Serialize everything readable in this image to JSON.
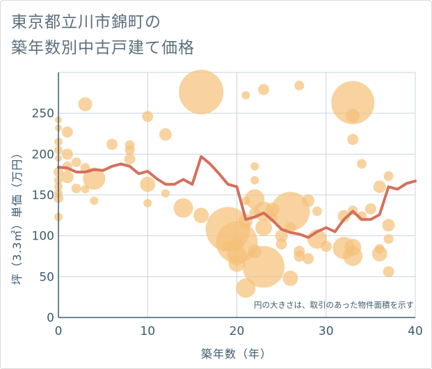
{
  "title_line1": "東京都立川市錦町の",
  "title_line2": "築年数別中古戸建て価格",
  "chart_data": {
    "type": "scatter",
    "title": "東京都立川市錦町の築年数別中古戸建て価格",
    "xlabel": "築年数（年）",
    "ylabel": "坪（3.3㎡）単価（万円）",
    "xlim": [
      0,
      40
    ],
    "ylim": [
      0,
      300
    ],
    "xticks": [
      "0",
      "10",
      "20",
      "30",
      "40"
    ],
    "yticks": [
      "0",
      "50",
      "100",
      "150",
      "200",
      "250"
    ],
    "grid": true,
    "note": "円の大きさは、取引のあった物件面積を示す",
    "colors": {
      "bubble": "#f5c178",
      "line": "#d4705c",
      "grid": "#c5d5de",
      "axis": "#3c5b6d"
    },
    "series": [
      {
        "kind": "bubbles",
        "points": [
          {
            "x": 0,
            "y": 242,
            "s": 5
          },
          {
            "x": 0,
            "y": 232,
            "s": 5
          },
          {
            "x": 0,
            "y": 215,
            "s": 6
          },
          {
            "x": 0,
            "y": 205,
            "s": 6
          },
          {
            "x": 0,
            "y": 195,
            "s": 5
          },
          {
            "x": 0,
            "y": 178,
            "s": 7
          },
          {
            "x": 0,
            "y": 168,
            "s": 6
          },
          {
            "x": 0,
            "y": 160,
            "s": 6
          },
          {
            "x": 0,
            "y": 152,
            "s": 6
          },
          {
            "x": 0,
            "y": 146,
            "s": 7
          },
          {
            "x": 0,
            "y": 123,
            "s": 6
          },
          {
            "x": 1,
            "y": 227,
            "s": 8
          },
          {
            "x": 1,
            "y": 200,
            "s": 8
          },
          {
            "x": 1,
            "y": 185,
            "s": 7
          },
          {
            "x": 1,
            "y": 172,
            "s": 9
          },
          {
            "x": 2,
            "y": 190,
            "s": 7
          },
          {
            "x": 2,
            "y": 158,
            "s": 7
          },
          {
            "x": 3,
            "y": 261,
            "s": 10
          },
          {
            "x": 3,
            "y": 183,
            "s": 7
          },
          {
            "x": 3,
            "y": 157,
            "s": 6
          },
          {
            "x": 4,
            "y": 170,
            "s": 16
          },
          {
            "x": 4,
            "y": 143,
            "s": 6
          },
          {
            "x": 6,
            "y": 212,
            "s": 8
          },
          {
            "x": 8,
            "y": 211,
            "s": 7
          },
          {
            "x": 8,
            "y": 205,
            "s": 7
          },
          {
            "x": 8,
            "y": 194,
            "s": 8
          },
          {
            "x": 10,
            "y": 246,
            "s": 8
          },
          {
            "x": 10,
            "y": 163,
            "s": 11
          },
          {
            "x": 10,
            "y": 140,
            "s": 6
          },
          {
            "x": 12,
            "y": 224,
            "s": 9
          },
          {
            "x": 12,
            "y": 152,
            "s": 6
          },
          {
            "x": 14,
            "y": 134,
            "s": 14
          },
          {
            "x": 16,
            "y": 276,
            "s": 32
          },
          {
            "x": 16,
            "y": 125,
            "s": 11
          },
          {
            "x": 19,
            "y": 108,
            "s": 32
          },
          {
            "x": 19,
            "y": 88,
            "s": 7
          },
          {
            "x": 20,
            "y": 92,
            "s": 30
          },
          {
            "x": 20,
            "y": 90,
            "s": 10
          },
          {
            "x": 20,
            "y": 76,
            "s": 14
          },
          {
            "x": 20,
            "y": 66,
            "s": 12
          },
          {
            "x": 21,
            "y": 272,
            "s": 6
          },
          {
            "x": 21,
            "y": 143,
            "s": 6
          },
          {
            "x": 21,
            "y": 118,
            "s": 10
          },
          {
            "x": 21,
            "y": 36,
            "s": 14
          },
          {
            "x": 22,
            "y": 185,
            "s": 6
          },
          {
            "x": 22,
            "y": 168,
            "s": 6
          },
          {
            "x": 22,
            "y": 145,
            "s": 14
          },
          {
            "x": 22,
            "y": 128,
            "s": 8
          },
          {
            "x": 22,
            "y": 81,
            "s": 10
          },
          {
            "x": 23,
            "y": 62,
            "s": 30
          },
          {
            "x": 23,
            "y": 279,
            "s": 8
          },
          {
            "x": 23,
            "y": 130,
            "s": 14
          },
          {
            "x": 23,
            "y": 110,
            "s": 12
          },
          {
            "x": 24,
            "y": 132,
            "s": 10
          },
          {
            "x": 24,
            "y": 122,
            "s": 7
          },
          {
            "x": 25,
            "y": 100,
            "s": 9
          },
          {
            "x": 25,
            "y": 90,
            "s": 8
          },
          {
            "x": 26,
            "y": 130,
            "s": 28
          },
          {
            "x": 26,
            "y": 110,
            "s": 8
          },
          {
            "x": 26,
            "y": 48,
            "s": 11
          },
          {
            "x": 27,
            "y": 284,
            "s": 7
          },
          {
            "x": 27,
            "y": 81,
            "s": 8
          },
          {
            "x": 27,
            "y": 75,
            "s": 8
          },
          {
            "x": 28,
            "y": 143,
            "s": 9
          },
          {
            "x": 28,
            "y": 72,
            "s": 8
          },
          {
            "x": 29,
            "y": 130,
            "s": 7
          },
          {
            "x": 29,
            "y": 96,
            "s": 14
          },
          {
            "x": 30,
            "y": 87,
            "s": 8
          },
          {
            "x": 32,
            "y": 124,
            "s": 9
          },
          {
            "x": 32,
            "y": 85,
            "s": 16
          },
          {
            "x": 33,
            "y": 263,
            "s": 31
          },
          {
            "x": 33,
            "y": 247,
            "s": 10
          },
          {
            "x": 33,
            "y": 218,
            "s": 8
          },
          {
            "x": 33,
            "y": 131,
            "s": 7
          },
          {
            "x": 33,
            "y": 86,
            "s": 12
          },
          {
            "x": 33,
            "y": 75,
            "s": 14
          },
          {
            "x": 34,
            "y": 188,
            "s": 7
          },
          {
            "x": 34,
            "y": 124,
            "s": 7
          },
          {
            "x": 35,
            "y": 133,
            "s": 8
          },
          {
            "x": 36,
            "y": 160,
            "s": 9
          },
          {
            "x": 36,
            "y": 84,
            "s": 7
          },
          {
            "x": 36,
            "y": 78,
            "s": 11
          },
          {
            "x": 37,
            "y": 173,
            "s": 7
          },
          {
            "x": 37,
            "y": 113,
            "s": 9
          },
          {
            "x": 37,
            "y": 96,
            "s": 7
          },
          {
            "x": 37,
            "y": 56,
            "s": 8
          }
        ]
      },
      {
        "kind": "line",
        "x": [
          0,
          1,
          2,
          3,
          4,
          5,
          6,
          7,
          8,
          9,
          10,
          11,
          12,
          13,
          14,
          15,
          16,
          17,
          18,
          19,
          20,
          21,
          22,
          23,
          24,
          25,
          26,
          27,
          28,
          29,
          30,
          31,
          32,
          33,
          34,
          35,
          36,
          37,
          38,
          39,
          40
        ],
        "y": [
          184,
          183,
          178,
          178,
          181,
          180,
          185,
          188,
          185,
          176,
          179,
          170,
          163,
          163,
          169,
          163,
          197,
          188,
          176,
          163,
          160,
          120,
          123,
          128,
          119,
          108,
          104,
          102,
          98,
          105,
          110,
          105,
          120,
          130,
          120,
          120,
          126,
          160,
          157,
          164,
          167
        ]
      }
    ]
  }
}
